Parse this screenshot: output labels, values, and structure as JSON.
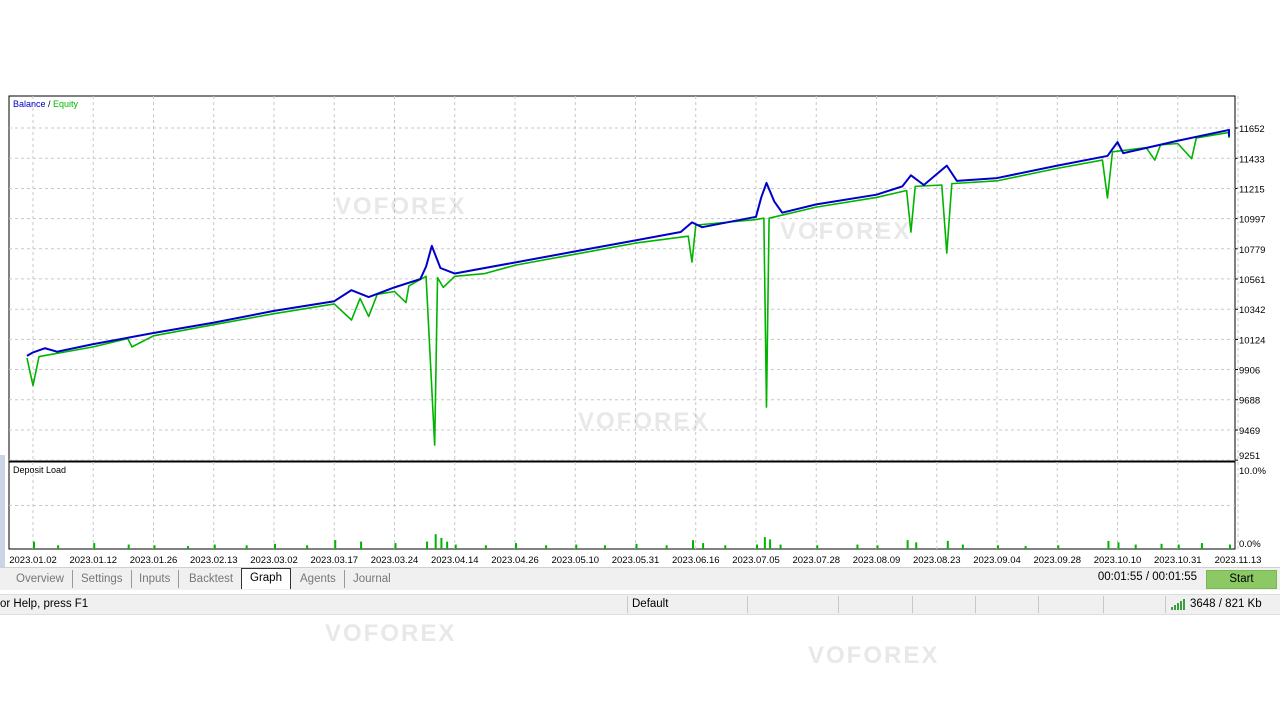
{
  "chart_data": [
    {
      "type": "line",
      "legend": {
        "balance_label": "Balance",
        "separator": " / ",
        "equity_label": "Equity",
        "placement": "top-left"
      },
      "series_colors": {
        "Balance": "#0000c8",
        "Equity": "#00b400"
      },
      "ylim": [
        9251,
        11760
      ],
      "y_ticks": [
        11652,
        11433,
        11215,
        10997,
        10779,
        10561,
        10342,
        10124,
        9906,
        9688,
        9469,
        9251
      ],
      "x_ticks": [
        "2023.01.02",
        "2023.01.12",
        "2023.01.26",
        "2023.02.13",
        "2023.03.02",
        "2023.03.17",
        "2023.03.24",
        "2023.04.14",
        "2023.04.26",
        "2023.05.10",
        "2023.05.31",
        "2023.06.16",
        "2023.07.05",
        "2023.07.28",
        "2023.08.09",
        "2023.08.23",
        "2023.09.04",
        "2023.09.28",
        "2023.10.10",
        "2023.10.31",
        "2023.11.13"
      ],
      "grid": true,
      "series": [
        {
          "name": "Balance",
          "points": [
            [
              "2023.01.01",
              10005
            ],
            [
              "2023.01.02",
              10030
            ],
            [
              "2023.01.04",
              10060
            ],
            [
              "2023.01.06",
              10035
            ],
            [
              "2023.01.12",
              10090
            ],
            [
              "2023.01.26",
              10170
            ],
            [
              "2023.02.13",
              10245
            ],
            [
              "2023.03.02",
              10330
            ],
            [
              "2023.03.17",
              10400
            ],
            [
              "2023.03.19",
              10480
            ],
            [
              "2023.03.21",
              10430
            ],
            [
              "2023.03.24",
              10500
            ],
            [
              "2023.04.02",
              10560
            ],
            [
              "2023.04.04",
              10650
            ],
            [
              "2023.04.06",
              10800
            ],
            [
              "2023.04.09",
              10640
            ],
            [
              "2023.04.14",
              10600
            ],
            [
              "2023.04.26",
              10680
            ],
            [
              "2023.05.10",
              10760
            ],
            [
              "2023.05.31",
              10840
            ],
            [
              "2023.06.12",
              10900
            ],
            [
              "2023.06.15",
              10970
            ],
            [
              "2023.06.18",
              10935
            ],
            [
              "2023.07.05",
              11010
            ],
            [
              "2023.07.07",
              11150
            ],
            [
              "2023.07.09",
              11255
            ],
            [
              "2023.07.12",
              11120
            ],
            [
              "2023.07.15",
              11040
            ],
            [
              "2023.07.28",
              11100
            ],
            [
              "2023.08.09",
              11170
            ],
            [
              "2023.08.15",
              11230
            ],
            [
              "2023.08.17",
              11310
            ],
            [
              "2023.08.20",
              11240
            ],
            [
              "2023.08.25",
              11380
            ],
            [
              "2023.08.27",
              11270
            ],
            [
              "2023.09.04",
              11290
            ],
            [
              "2023.09.28",
              11380
            ],
            [
              "2023.10.08",
              11450
            ],
            [
              "2023.10.10",
              11550
            ],
            [
              "2023.10.12",
              11470
            ],
            [
              "2023.10.31",
              11560
            ],
            [
              "2023.11.13",
              11638
            ],
            [
              "2023.11.14",
              11590
            ]
          ]
        },
        {
          "name": "Equity",
          "points": [
            [
              "2023.01.01",
              9990
            ],
            [
              "2023.01.02",
              9790
            ],
            [
              "2023.01.03",
              10000
            ],
            [
              "2023.01.12",
              10070
            ],
            [
              "2023.01.20",
              10130
            ],
            [
              "2023.01.21",
              10070
            ],
            [
              "2023.01.26",
              10150
            ],
            [
              "2023.02.13",
              10230
            ],
            [
              "2023.03.02",
              10310
            ],
            [
              "2023.03.17",
              10380
            ],
            [
              "2023.03.19",
              10264
            ],
            [
              "2023.03.20",
              10420
            ],
            [
              "2023.03.21",
              10290
            ],
            [
              "2023.03.22",
              10450
            ],
            [
              "2023.03.24",
              10470
            ],
            [
              "2023.03.28",
              10390
            ],
            [
              "2023.03.29",
              10510
            ],
            [
              "2023.04.04",
              10580
            ],
            [
              "2023.04.07",
              9360
            ],
            [
              "2023.04.08",
              10570
            ],
            [
              "2023.04.10",
              10500
            ],
            [
              "2023.04.14",
              10580
            ],
            [
              "2023.04.20",
              10600
            ],
            [
              "2023.04.26",
              10660
            ],
            [
              "2023.05.10",
              10740
            ],
            [
              "2023.05.31",
              10820
            ],
            [
              "2023.06.14",
              10870
            ],
            [
              "2023.06.15",
              10683
            ],
            [
              "2023.06.16",
              10950
            ],
            [
              "2023.07.05",
              10990
            ],
            [
              "2023.07.08",
              11000
            ],
            [
              "2023.07.09",
              9635
            ],
            [
              "2023.07.10",
              11000
            ],
            [
              "2023.07.28",
              11080
            ],
            [
              "2023.08.09",
              11150
            ],
            [
              "2023.08.16",
              11200
            ],
            [
              "2023.08.17",
              10900
            ],
            [
              "2023.08.18",
              11230
            ],
            [
              "2023.08.24",
              11240
            ],
            [
              "2023.08.25",
              10748
            ],
            [
              "2023.08.26",
              11250
            ],
            [
              "2023.09.04",
              11270
            ],
            [
              "2023.09.28",
              11360
            ],
            [
              "2023.10.07",
              11420
            ],
            [
              "2023.10.08",
              11146
            ],
            [
              "2023.10.09",
              11480
            ],
            [
              "2023.10.20",
              11510
            ],
            [
              "2023.10.23",
              11420
            ],
            [
              "2023.10.25",
              11530
            ],
            [
              "2023.10.31",
              11540
            ],
            [
              "2023.11.03",
              11430
            ],
            [
              "2023.11.04",
              11580
            ],
            [
              "2023.11.13",
              11620
            ],
            [
              "2023.11.14",
              11580
            ]
          ]
        }
      ]
    },
    {
      "type": "bar",
      "title": "Deposit Load",
      "ylim": [
        0,
        10
      ],
      "y_ticks": [
        "10.0%",
        "0.0%"
      ],
      "bar_color": "#00b400",
      "loads_pct": [
        [
          "2023.01.02",
          1.0
        ],
        [
          "2023.01.06",
          0.5
        ],
        [
          "2023.01.12",
          0.8
        ],
        [
          "2023.01.20",
          0.6
        ],
        [
          "2023.01.26",
          0.5
        ],
        [
          "2023.02.05",
          0.4
        ],
        [
          "2023.02.13",
          0.6
        ],
        [
          "2023.02.22",
          0.5
        ],
        [
          "2023.03.02",
          0.7
        ],
        [
          "2023.03.10",
          0.5
        ],
        [
          "2023.03.17",
          1.2
        ],
        [
          "2023.03.20",
          1.0
        ],
        [
          "2023.03.24",
          0.8
        ],
        [
          "2023.04.04",
          1.0
        ],
        [
          "2023.04.07",
          2.0
        ],
        [
          "2023.04.09",
          1.5
        ],
        [
          "2023.04.11",
          1.0
        ],
        [
          "2023.04.14",
          0.6
        ],
        [
          "2023.04.20",
          0.5
        ],
        [
          "2023.04.26",
          0.8
        ],
        [
          "2023.05.03",
          0.5
        ],
        [
          "2023.05.10",
          0.6
        ],
        [
          "2023.05.20",
          0.5
        ],
        [
          "2023.05.31",
          0.7
        ],
        [
          "2023.06.08",
          0.5
        ],
        [
          "2023.06.15",
          1.2
        ],
        [
          "2023.06.18",
          0.8
        ],
        [
          "2023.06.25",
          0.5
        ],
        [
          "2023.07.05",
          0.6
        ],
        [
          "2023.07.08",
          1.6
        ],
        [
          "2023.07.10",
          1.3
        ],
        [
          "2023.07.14",
          0.6
        ],
        [
          "2023.07.28",
          0.5
        ],
        [
          "2023.08.05",
          0.6
        ],
        [
          "2023.08.09",
          0.5
        ],
        [
          "2023.08.16",
          1.2
        ],
        [
          "2023.08.18",
          0.9
        ],
        [
          "2023.08.25",
          1.1
        ],
        [
          "2023.08.28",
          0.6
        ],
        [
          "2023.09.04",
          0.5
        ],
        [
          "2023.09.15",
          0.4
        ],
        [
          "2023.09.28",
          0.5
        ],
        [
          "2023.10.08",
          1.1
        ],
        [
          "2023.10.10",
          0.9
        ],
        [
          "2023.10.16",
          0.6
        ],
        [
          "2023.10.25",
          0.7
        ],
        [
          "2023.10.31",
          0.6
        ],
        [
          "2023.11.05",
          0.8
        ],
        [
          "2023.11.13",
          0.6
        ]
      ]
    }
  ],
  "tabs": [
    {
      "label": "Overview",
      "active": false
    },
    {
      "label": "Settings",
      "active": false
    },
    {
      "label": "Inputs",
      "active": false
    },
    {
      "label": "Backtest",
      "active": false
    },
    {
      "label": "Graph",
      "active": true
    },
    {
      "label": "Agents",
      "active": false
    },
    {
      "label": "Journal",
      "active": false
    }
  ],
  "timer": "00:01:55 / 00:01:55",
  "start_button": "Start",
  "accent_start": "#8cc863",
  "status": {
    "help": "or Help, press F1",
    "profile": "Default",
    "traffic": "3648 / 821 Kb",
    "signal_icon": "signal-bars-icon"
  },
  "watermark": "VOFOREX"
}
